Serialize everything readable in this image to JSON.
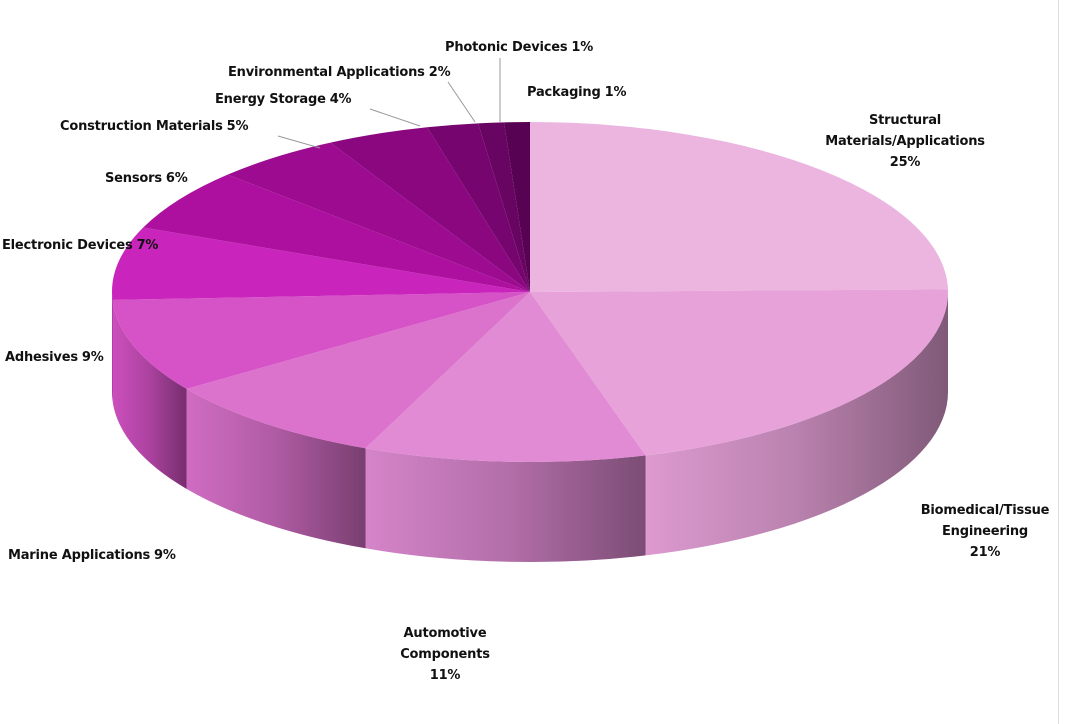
{
  "chart_data": {
    "type": "pie",
    "style": "3d",
    "categories": [
      "Structural Materials/Applications",
      "Biomedical/Tissue Engineering",
      "Automotive Components",
      "Marine Applications",
      "Adhesives",
      "Electronic Devices",
      "Sensors",
      "Construction Materials",
      "Energy Storage",
      "Environmental Applications",
      "Photonic Devices",
      "Packaging"
    ],
    "values": [
      25,
      21,
      11,
      9,
      9,
      7,
      6,
      5,
      4,
      2,
      1,
      1
    ],
    "value_labels": [
      "25%",
      "21%",
      "11%",
      "9%",
      "9%",
      "7%",
      "6%",
      "5%",
      "4%",
      "2%",
      "1%",
      "1%"
    ],
    "colors": [
      "#ebb5e0",
      "#e8a2da",
      "#e08bd4",
      "#db72cc",
      "#d653c7",
      "#c924bb",
      "#ad109f",
      "#9c0b90",
      "#8a0780",
      "#770570",
      "#680462",
      "#580254"
    ]
  }
}
